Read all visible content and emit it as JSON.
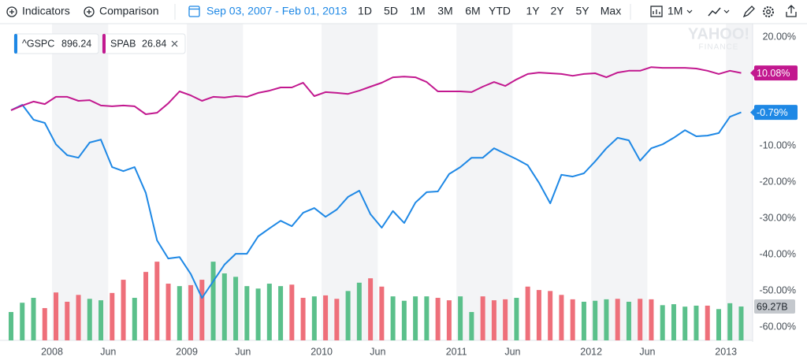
{
  "toolbar": {
    "indicators": "Indicators",
    "comparison": "Comparison",
    "date_range": "Sep 03, 2007 - Feb 01, 2013",
    "ranges": [
      "1D",
      "5D",
      "1M",
      "3M",
      "6M",
      "YTD",
      "1Y",
      "2Y",
      "5Y",
      "Max"
    ],
    "interval": "1M"
  },
  "watermark": [
    "YAHOO!",
    "FINANCE"
  ],
  "chart_data": {
    "type": "line",
    "categories": [
      null,
      null,
      null,
      null,
      "2008",
      null,
      null,
      null,
      null,
      "Jun",
      null,
      null,
      null,
      null,
      null,
      null,
      "2009",
      null,
      null,
      null,
      null,
      "Jun",
      null,
      null,
      null,
      null,
      null,
      null,
      "2010",
      null,
      null,
      null,
      null,
      "Jun",
      null,
      null,
      null,
      null,
      null,
      null,
      "2011",
      null,
      null,
      null,
      null,
      "Jun",
      null,
      null,
      null,
      null,
      null,
      null,
      "2012",
      null,
      null,
      null,
      null,
      "Jun",
      null,
      null,
      null,
      null,
      null,
      null,
      "2013",
      null
    ],
    "ylim": [
      -63.7,
      23.7
    ],
    "yticks": [
      {
        "value": 20,
        "label": "20.00%"
      },
      {
        "value": -10,
        "label": "-10.00%"
      },
      {
        "value": -20,
        "label": "-20.00%"
      },
      {
        "value": -30,
        "label": "-30.00%"
      },
      {
        "value": -40,
        "label": "-40.00%"
      },
      {
        "value": -50,
        "label": "-50.00%"
      },
      {
        "value": -60,
        "label": "-60.00%"
      }
    ],
    "grid": false,
    "series": [
      {
        "name": "^GSPC",
        "price": 896.24,
        "color": "#1e88e5",
        "values": [
          -0.2,
          1.3,
          -2.8,
          -3.7,
          -9.6,
          -12.6,
          -13.3,
          -9.1,
          -8.3,
          -15.9,
          -17.0,
          -15.9,
          -23.0,
          -36.1,
          -41.1,
          -40.7,
          -45.4,
          -52.0,
          -47.4,
          -42.8,
          -39.8,
          -39.8,
          -35.0,
          -32.8,
          -30.7,
          -32.2,
          -28.5,
          -27.2,
          -29.6,
          -27.6,
          -24.1,
          -22.4,
          -28.9,
          -32.6,
          -28.0,
          -31.3,
          -25.7,
          -22.8,
          -22.6,
          -17.8,
          -15.9,
          -13.3,
          -13.3,
          -10.7,
          -12.2,
          -13.7,
          -15.4,
          -20.2,
          -25.9,
          -18.0,
          -18.5,
          -17.6,
          -14.3,
          -10.7,
          -7.8,
          -8.5,
          -14.1,
          -10.7,
          -9.6,
          -7.8,
          -5.7,
          -7.4,
          -7.2,
          -6.5,
          -2.0,
          -0.79
        ],
        "value_labels": [
          null,
          null,
          null,
          null,
          null,
          null,
          null,
          null,
          null,
          null,
          null,
          null,
          null,
          null,
          null,
          null,
          null,
          null,
          null,
          null,
          null,
          null,
          null,
          null,
          null,
          null,
          null,
          null,
          null,
          null,
          null,
          null,
          null,
          null,
          null,
          null,
          null,
          null,
          null,
          null,
          null,
          null,
          null,
          null,
          null,
          null,
          null,
          null,
          null,
          null,
          null,
          null,
          null,
          null,
          null,
          null,
          null,
          null,
          null,
          null,
          null,
          null,
          null,
          null,
          null,
          "-0.79%"
        ]
      },
      {
        "name": "SPAB",
        "price": 26.84,
        "color": "#c2188f",
        "values": [
          -0.2,
          1.1,
          2.2,
          1.5,
          3.5,
          3.5,
          2.4,
          2.6,
          1.1,
          0.9,
          1.1,
          0.9,
          -1.3,
          -0.9,
          1.7,
          5.0,
          3.9,
          2.4,
          3.5,
          3.3,
          3.7,
          3.5,
          4.6,
          5.2,
          6.1,
          6.1,
          7.4,
          3.7,
          4.8,
          4.6,
          4.3,
          5.2,
          6.3,
          7.4,
          8.9,
          9.1,
          8.9,
          7.6,
          5.0,
          5.0,
          5.0,
          4.8,
          6.3,
          7.6,
          6.5,
          8.3,
          9.8,
          10.2,
          10.0,
          9.8,
          9.3,
          9.8,
          10.0,
          8.9,
          10.2,
          10.7,
          10.7,
          11.7,
          11.5,
          11.5,
          11.5,
          11.3,
          10.7,
          9.8,
          10.7,
          10.08
        ],
        "value_labels": [
          null,
          null,
          null,
          null,
          null,
          null,
          null,
          null,
          null,
          null,
          null,
          null,
          null,
          null,
          null,
          null,
          null,
          null,
          null,
          null,
          null,
          null,
          null,
          null,
          null,
          null,
          null,
          null,
          null,
          null,
          null,
          null,
          null,
          null,
          null,
          null,
          null,
          null,
          null,
          null,
          null,
          null,
          null,
          null,
          null,
          null,
          null,
          null,
          null,
          null,
          null,
          null,
          null,
          null,
          null,
          null,
          null,
          null,
          null,
          null,
          null,
          null,
          null,
          null,
          null,
          "10.08%"
        ]
      }
    ],
    "volume": {
      "ylim": [
        0,
        648
      ],
      "values": [
        58,
        77,
        87,
        66,
        98,
        79,
        93,
        85,
        82,
        97,
        124,
        87,
        140,
        161,
        116,
        111,
        113,
        124,
        161,
        137,
        130,
        111,
        106,
        116,
        111,
        114,
        87,
        90,
        92,
        85,
        101,
        118,
        127,
        110,
        90,
        81,
        90,
        90,
        87,
        82,
        90,
        58,
        90,
        82,
        84,
        87,
        110,
        103,
        101,
        93,
        84,
        79,
        81,
        84,
        85,
        79,
        85,
        84,
        72,
        74,
        69,
        71,
        71,
        64,
        76,
        69.27
      ],
      "value_labels": [
        null,
        null,
        null,
        null,
        null,
        null,
        null,
        null,
        null,
        null,
        null,
        null,
        null,
        null,
        null,
        null,
        null,
        null,
        null,
        null,
        null,
        null,
        null,
        null,
        null,
        null,
        null,
        null,
        null,
        null,
        null,
        null,
        null,
        null,
        null,
        null,
        null,
        null,
        null,
        null,
        null,
        null,
        null,
        null,
        null,
        null,
        null,
        null,
        null,
        null,
        null,
        null,
        null,
        null,
        null,
        null,
        null,
        null,
        null,
        null,
        null,
        null,
        null,
        null,
        null,
        "69.27B"
      ],
      "colors": [
        "#5bc08b",
        "#5bc08b",
        "#5bc08b",
        "#ee6f7a",
        "#ee6f7a",
        "#ee6f7a",
        "#ee6f7a",
        "#5bc08b",
        "#5bc08b",
        "#ee6f7a",
        "#ee6f7a",
        "#5bc08b",
        "#ee6f7a",
        "#ee6f7a",
        "#ee6f7a",
        "#5bc08b",
        "#ee6f7a",
        "#ee6f7a",
        "#5bc08b",
        "#5bc08b",
        "#5bc08b",
        "#5bc08b",
        "#5bc08b",
        "#5bc08b",
        "#5bc08b",
        "#ee6f7a",
        "#ee6f7a",
        "#5bc08b",
        "#ee6f7a",
        "#ee6f7a",
        "#5bc08b",
        "#5bc08b",
        "#ee6f7a",
        "#ee6f7a",
        "#5bc08b",
        "#5bc08b",
        "#5bc08b",
        "#5bc08b",
        "#ee6f7a",
        "#ee6f7a",
        "#5bc08b",
        "#5bc08b",
        "#ee6f7a",
        "#ee6f7a",
        "#ee6f7a",
        "#5bc08b",
        "#ee6f7a",
        "#ee6f7a",
        "#ee6f7a",
        "#ee6f7a",
        "#ee6f7a",
        "#5bc08b",
        "#5bc08b",
        "#5bc08b",
        "#ee6f7a",
        "#5bc08b",
        "#ee6f7a",
        "#ee6f7a",
        "#5bc08b",
        "#5bc08b",
        "#5bc08b",
        "#5bc08b",
        "#ee6f7a",
        "#5bc08b",
        "#5bc08b",
        "#5bc08b"
      ]
    }
  }
}
